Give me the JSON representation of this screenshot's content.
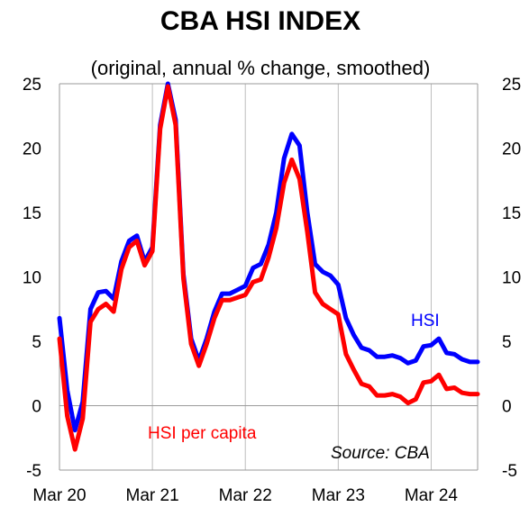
{
  "chart_data": {
    "type": "line",
    "title": "CBA HSI INDEX",
    "subtitle": "(original, annual % change, smoothed)",
    "source": "Source: CBA",
    "ylim": [
      -5,
      25
    ],
    "yticks": [
      "25",
      "20",
      "15",
      "10",
      "5",
      "0",
      "-5"
    ],
    "ytick_values": [
      25,
      20,
      15,
      10,
      5,
      0,
      -5
    ],
    "xticks": [
      "Mar 20",
      "Mar 21",
      "Mar 22",
      "Mar 23",
      "Mar 24"
    ],
    "xtick_values": [
      "2020-03",
      "2021-03",
      "2022-03",
      "2023-03",
      "2024-03"
    ],
    "xlim": [
      "2020-03",
      "2024-09"
    ],
    "grid": "vertical",
    "x": [
      "2020-03",
      "2020-04",
      "2020-05",
      "2020-06",
      "2020-07",
      "2020-08",
      "2020-09",
      "2020-10",
      "2020-11",
      "2020-12",
      "2021-01",
      "2021-02",
      "2021-03",
      "2021-04",
      "2021-05",
      "2021-06",
      "2021-07",
      "2021-08",
      "2021-09",
      "2021-10",
      "2021-11",
      "2021-12",
      "2022-01",
      "2022-02",
      "2022-03",
      "2022-04",
      "2022-05",
      "2022-06",
      "2022-07",
      "2022-08",
      "2022-09",
      "2022-10",
      "2022-11",
      "2022-12",
      "2023-01",
      "2023-02",
      "2023-03",
      "2023-04",
      "2023-05",
      "2023-06",
      "2023-07",
      "2023-08",
      "2023-09",
      "2023-10",
      "2023-11",
      "2023-12",
      "2024-01",
      "2024-02",
      "2024-03",
      "2024-04",
      "2024-05",
      "2024-06",
      "2024-07",
      "2024-08",
      "2024-09"
    ],
    "series": [
      {
        "name": "HSI",
        "color": "#0000ff",
        "values": [
          6.8,
          1.2,
          -1.9,
          0.3,
          7.5,
          8.8,
          8.9,
          8.3,
          11.2,
          12.8,
          13.2,
          11.2,
          12.3,
          21.8,
          25.0,
          22.2,
          10.2,
          5.2,
          3.5,
          5.2,
          7.3,
          8.7,
          8.7,
          9.0,
          9.3,
          10.7,
          11.0,
          12.5,
          15.0,
          19.2,
          21.1,
          20.2,
          15.0,
          11.0,
          10.4,
          10.1,
          9.4,
          6.8,
          5.5,
          4.5,
          4.3,
          3.8,
          3.8,
          3.9,
          3.7,
          3.3,
          3.5,
          4.6,
          4.7,
          5.2,
          4.1,
          4.0,
          3.6,
          3.4,
          3.4
        ]
      },
      {
        "name": "HSI per capita",
        "color": "#ff0000",
        "values": [
          5.2,
          -0.8,
          -3.4,
          -1.0,
          6.5,
          7.5,
          7.9,
          7.3,
          10.6,
          12.3,
          12.8,
          10.9,
          12.0,
          21.5,
          24.8,
          21.8,
          9.9,
          4.8,
          3.1,
          4.8,
          6.8,
          8.2,
          8.2,
          8.4,
          8.6,
          9.6,
          9.8,
          11.5,
          13.8,
          17.3,
          19.1,
          17.6,
          13.5,
          8.8,
          7.9,
          7.5,
          7.1,
          4.0,
          2.8,
          1.7,
          1.5,
          0.8,
          0.8,
          0.9,
          0.7,
          0.2,
          0.5,
          1.8,
          1.9,
          2.4,
          1.3,
          1.4,
          1.0,
          0.9,
          0.9
        ]
      }
    ]
  }
}
